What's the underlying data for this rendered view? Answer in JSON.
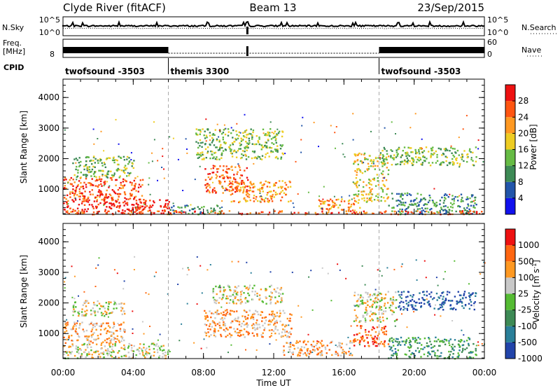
{
  "header": {
    "station": "Clyde River (fitACF)",
    "beam": "Beam 13",
    "date": "23/Sep/2015"
  },
  "chart_data": [
    {
      "type": "line",
      "name": "nsky-nsearch-panel",
      "left_label": "N.Sky",
      "right_label": "N.Search",
      "left_ticks": [
        "10^5",
        "10^0"
      ],
      "right_ticks": [
        "10^5",
        "10^0"
      ]
    },
    {
      "type": "line",
      "name": "freq-nave-panel",
      "left_label_lines": [
        "Freq.",
        "[MHz]"
      ],
      "right_label": "Nave",
      "left_ticks": [
        "8"
      ],
      "right_ticks": [
        "60",
        "0"
      ],
      "freq_step": [
        [
          0,
          6,
          "high"
        ],
        [
          6,
          18,
          "low"
        ],
        [
          18,
          24,
          "high"
        ]
      ]
    },
    {
      "type": "table",
      "name": "cpid-track",
      "label": "CPID",
      "modes": [
        {
          "name": "twofsound -3503",
          "start": 0,
          "end": 6
        },
        {
          "name": "themis 3300",
          "start": 6,
          "end": 18
        },
        {
          "name": "twofsound -3503",
          "start": 18,
          "end": 24
        }
      ]
    },
    {
      "type": "heatmap",
      "name": "power-panel",
      "ylabel": "Slant Range [km]",
      "xlim": [
        0,
        24
      ],
      "ylim": [
        180,
        4600
      ],
      "yticks": [
        1000,
        2000,
        3000,
        4000
      ],
      "colorbar": {
        "label": "Power [dB]",
        "ticks": [
          "4",
          "8",
          "12",
          "16",
          "20",
          "24",
          "28"
        ],
        "colors": [
          "#1111ee",
          "#2255aa",
          "#3d8a55",
          "#66bb44",
          "#eecc22",
          "#ff9922",
          "#ff5511",
          "#ee1111"
        ]
      },
      "regions": [
        {
          "t": [
            0.0,
            6.0
          ],
          "r": [
            200,
            700
          ],
          "level": 7
        },
        {
          "t": [
            0.0,
            4.5
          ],
          "r": [
            600,
            1400
          ],
          "level": 6
        },
        {
          "t": [
            0.5,
            4.0
          ],
          "r": [
            1400,
            2100
          ],
          "level": 3
        },
        {
          "t": [
            8.0,
            10.5
          ],
          "r": [
            900,
            1800
          ],
          "level": 6
        },
        {
          "t": [
            9.5,
            13.0
          ],
          "r": [
            600,
            1300
          ],
          "level": 5
        },
        {
          "t": [
            7.5,
            12.5
          ],
          "r": [
            2000,
            3000
          ],
          "level": 3
        },
        {
          "t": [
            6.0,
            9.0
          ],
          "r": [
            200,
            500
          ],
          "level": 2
        },
        {
          "t": [
            14.5,
            17.0
          ],
          "r": [
            300,
            700
          ],
          "level": 5
        },
        {
          "t": [
            16.5,
            18.5
          ],
          "r": [
            600,
            2200
          ],
          "level": 4
        },
        {
          "t": [
            18.0,
            23.5
          ],
          "r": [
            1800,
            2400
          ],
          "level": 3
        },
        {
          "t": [
            18.5,
            23.5
          ],
          "r": [
            200,
            900
          ],
          "level": 2
        },
        {
          "t": [
            0.0,
            24.0
          ],
          "r": [
            200,
            320
          ],
          "level": 6
        }
      ]
    },
    {
      "type": "heatmap",
      "name": "velocity-panel",
      "ylabel": "Slant Range [km]",
      "xlabel": "Time UT",
      "xlim": [
        0,
        24
      ],
      "ylim": [
        180,
        4600
      ],
      "xticks": [
        "00:00",
        "04:00",
        "08:00",
        "12:00",
        "16:00",
        "20:00",
        "00:00"
      ],
      "yticks": [
        1000,
        2000,
        3000,
        4000
      ],
      "colorbar": {
        "label": "Velocity [m s",
        "label_sup": "-1",
        "label_end": "]",
        "ticks": [
          "1000",
          "500",
          "100",
          "25",
          "-25",
          "-100",
          "-500",
          "-1000"
        ],
        "colors": [
          "#2244aa",
          "#2a7f99",
          "#3d8a55",
          "#55bb33",
          "#c8c8c8",
          "#ff9922",
          "#ff6611",
          "#ee1111"
        ]
      },
      "regions": [
        {
          "t": [
            0.0,
            6.0
          ],
          "r": [
            200,
            700
          ],
          "level": 4
        },
        {
          "t": [
            0.0,
            3.5
          ],
          "r": [
            700,
            1400
          ],
          "level": 5
        },
        {
          "t": [
            0.5,
            3.5
          ],
          "r": [
            1600,
            2100
          ],
          "level": 4
        },
        {
          "t": [
            8.0,
            13.0
          ],
          "r": [
            900,
            1800
          ],
          "level": 5
        },
        {
          "t": [
            8.5,
            12.5
          ],
          "r": [
            2000,
            2600
          ],
          "level": 4
        },
        {
          "t": [
            12.5,
            16.5
          ],
          "r": [
            300,
            800
          ],
          "level": 5
        },
        {
          "t": [
            16.5,
            18.5
          ],
          "r": [
            600,
            1300
          ],
          "level": 6
        },
        {
          "t": [
            16.5,
            19.0
          ],
          "r": [
            1400,
            2400
          ],
          "level": 4
        },
        {
          "t": [
            19.0,
            23.5
          ],
          "r": [
            1800,
            2400
          ],
          "level": 0
        },
        {
          "t": [
            18.5,
            23.5
          ],
          "r": [
            200,
            900
          ],
          "level": 2
        }
      ]
    }
  ]
}
